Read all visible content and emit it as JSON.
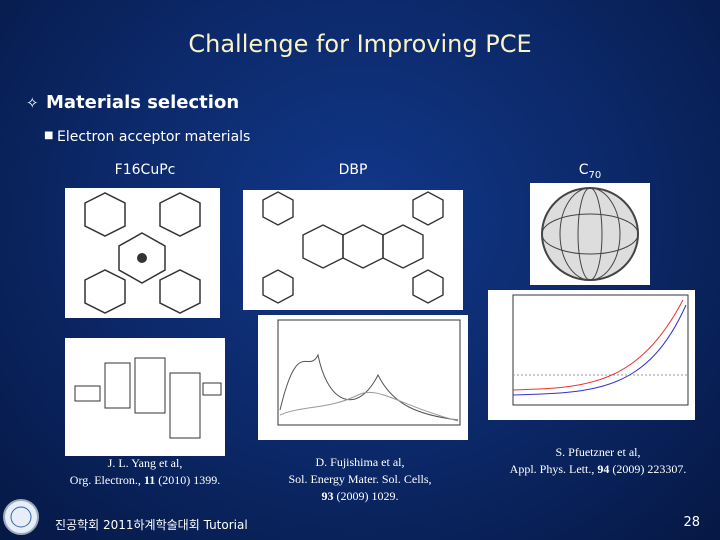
{
  "title": "Challenge for Improving PCE",
  "bullets": [
    {
      "text": "Materials selection",
      "sub": [
        "Electron acceptor materials"
      ]
    }
  ],
  "materials": [
    {
      "name": "F16CuPc"
    },
    {
      "name": "DBP"
    },
    {
      "name_base": "C",
      "name_sub": "70"
    }
  ],
  "citations": [
    {
      "authors": "J. L. Yang et al,",
      "journal": "Org. Electron., ",
      "volume": "11",
      "rest": " (2010) 1399."
    },
    {
      "authors": "D. Fujishima et al,",
      "journal": "Sol. Energy Mater. Sol. Cells,",
      "volume": "93",
      "rest": " (2009) 1029."
    },
    {
      "authors": "S. Pfuetzner et al,",
      "journal": "Appl. Phys. Lett., ",
      "volume": "94",
      "rest": " (2009) 223307."
    }
  ],
  "footer": "진공학회 2011하계학술대회 Tutorial",
  "page_number": 28
}
